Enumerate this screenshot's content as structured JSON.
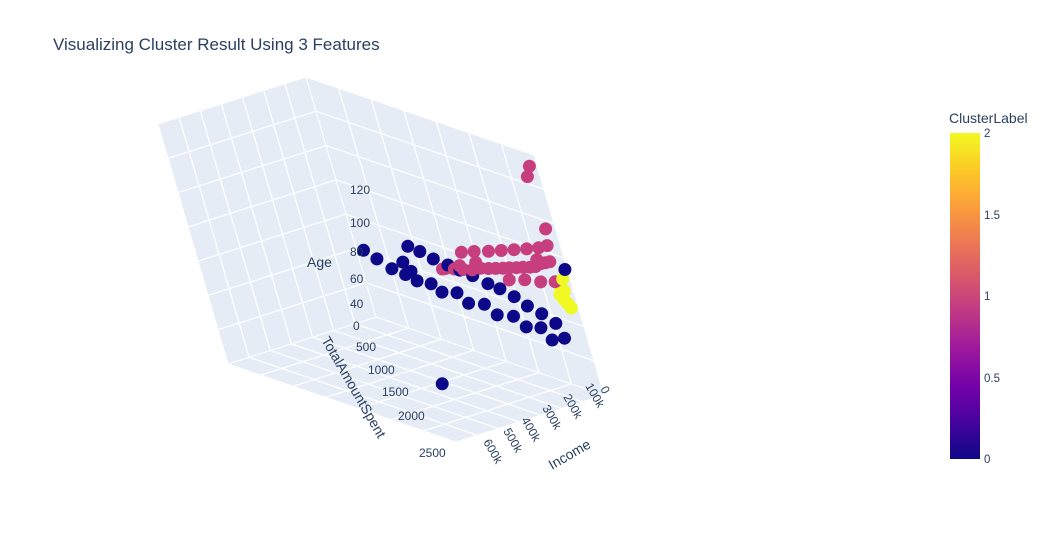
{
  "chart_data": {
    "type": "scatter",
    "title": "Visualizing Cluster Result Using 3 Features",
    "axes": {
      "x": {
        "label": "Income",
        "ticks": [
          "0",
          "100k",
          "200k",
          "300k",
          "400k",
          "500k",
          "600k"
        ]
      },
      "y": {
        "label": "TotalAmountSpent",
        "ticks": [
          "0",
          "500",
          "1000",
          "1500",
          "2000",
          "2500"
        ]
      },
      "z": {
        "label": "Age",
        "ticks": [
          "40",
          "60",
          "80",
          "100",
          "120"
        ]
      }
    },
    "colorbar": {
      "title": "ClusterLabel",
      "ticks": [
        "0",
        "0.5",
        "1",
        "1.5",
        "2"
      ],
      "range": [
        0,
        2
      ],
      "colorscale": [
        "#0d0887",
        "#46039f",
        "#7201a8",
        "#9c179e",
        "#bd3786",
        "#d8576b",
        "#ed7953",
        "#fb9f3a",
        "#fdca26",
        "#f0f921"
      ]
    },
    "cluster_colors": {
      "0": "#0d0887",
      "1": "#c73e7e",
      "2": "#f0f921"
    },
    "grid": true,
    "series": [
      {
        "cluster": 0,
        "points": [
          [
            36000,
            250,
            52
          ],
          [
            42000,
            380,
            55
          ],
          [
            48000,
            520,
            57
          ],
          [
            54000,
            640,
            60
          ],
          [
            60000,
            780,
            62
          ],
          [
            66000,
            900,
            63
          ],
          [
            72000,
            1050,
            65
          ],
          [
            78000,
            1180,
            66
          ],
          [
            84000,
            1300,
            67
          ],
          [
            90000,
            1450,
            68
          ],
          [
            96000,
            1580,
            70
          ],
          [
            102000,
            1700,
            71
          ],
          [
            40000,
            180,
            46
          ],
          [
            50000,
            420,
            48
          ],
          [
            62000,
            700,
            50
          ],
          [
            74000,
            1000,
            52
          ],
          [
            86000,
            1280,
            54
          ],
          [
            98000,
            1550,
            55
          ],
          [
            108000,
            1820,
            56
          ],
          [
            114000,
            1960,
            57
          ],
          [
            56000,
            300,
            44
          ],
          [
            66000,
            560,
            47
          ],
          [
            78000,
            860,
            49
          ],
          [
            92000,
            1150,
            51
          ],
          [
            104000,
            1420,
            53
          ],
          [
            112000,
            1680,
            55
          ],
          [
            666666,
            60,
            46
          ],
          [
            160000,
            1650,
            66
          ],
          [
            153000,
            1600,
            62
          ],
          [
            4000,
            20,
            80
          ],
          [
            120000,
            2100,
            60
          ],
          [
            118000,
            2250,
            62
          ]
        ]
      },
      {
        "cluster": 1,
        "points": [
          [
            40000,
            80,
            84
          ],
          [
            45000,
            130,
            83
          ],
          [
            50000,
            180,
            82
          ],
          [
            55000,
            240,
            80
          ],
          [
            60000,
            300,
            79
          ],
          [
            65000,
            380,
            78
          ],
          [
            70000,
            450,
            77
          ],
          [
            75000,
            530,
            76
          ],
          [
            80000,
            600,
            75
          ],
          [
            85000,
            680,
            74
          ],
          [
            90000,
            760,
            73
          ],
          [
            95000,
            850,
            72
          ],
          [
            100000,
            950,
            70
          ],
          [
            105000,
            1050,
            69
          ],
          [
            110000,
            1150,
            68
          ],
          [
            115000,
            1250,
            67
          ],
          [
            38000,
            60,
            92
          ],
          [
            48000,
            150,
            90
          ],
          [
            58000,
            280,
            88
          ],
          [
            68000,
            420,
            86
          ],
          [
            78000,
            560,
            84
          ],
          [
            88000,
            700,
            82
          ],
          [
            98000,
            860,
            80
          ],
          [
            108000,
            1000,
            78
          ],
          [
            62000,
            20,
            76
          ],
          [
            72000,
            180,
            74
          ],
          [
            82000,
            350,
            73
          ],
          [
            94000,
            520,
            71
          ],
          [
            30000,
            40,
            100
          ],
          [
            36000,
            60,
            125
          ],
          [
            24000,
            30,
            130
          ],
          [
            110000,
            30,
            88
          ],
          [
            112000,
            1300,
            66
          ],
          [
            100000,
            1100,
            70
          ],
          [
            92000,
            900,
            74
          ]
        ]
      },
      {
        "cluster": 2,
        "points": [
          [
            22000,
            30,
            62
          ],
          [
            26000,
            50,
            64
          ],
          [
            30000,
            70,
            66
          ],
          [
            34000,
            90,
            68
          ],
          [
            28000,
            40,
            70
          ],
          [
            32000,
            60,
            72
          ],
          [
            36000,
            80,
            74
          ],
          [
            24000,
            25,
            76
          ]
        ]
      }
    ]
  }
}
